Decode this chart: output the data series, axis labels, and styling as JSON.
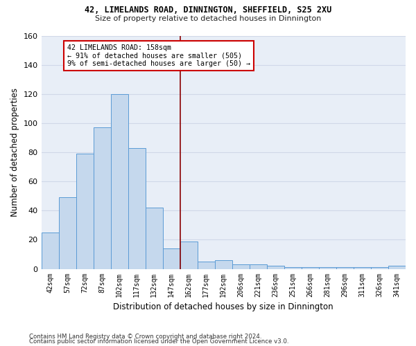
{
  "title1": "42, LIMELANDS ROAD, DINNINGTON, SHEFFIELD, S25 2XU",
  "title2": "Size of property relative to detached houses in Dinnington",
  "xlabel": "Distribution of detached houses by size in Dinnington",
  "ylabel": "Number of detached properties",
  "categories": [
    "42sqm",
    "57sqm",
    "72sqm",
    "87sqm",
    "102sqm",
    "117sqm",
    "132sqm",
    "147sqm",
    "162sqm",
    "177sqm",
    "192sqm",
    "206sqm",
    "221sqm",
    "236sqm",
    "251sqm",
    "266sqm",
    "281sqm",
    "296sqm",
    "311sqm",
    "326sqm",
    "341sqm"
  ],
  "values": [
    25,
    49,
    79,
    97,
    120,
    83,
    42,
    14,
    19,
    5,
    6,
    3,
    3,
    2,
    1,
    1,
    1,
    1,
    1,
    1,
    2
  ],
  "bar_color": "#c5d8ed",
  "bar_edge_color": "#5b9bd5",
  "highlight_line_index": 8,
  "highlight_line_color": "#8b0000",
  "annotation_text": "42 LIMELANDS ROAD: 158sqm\n← 91% of detached houses are smaller (505)\n9% of semi-detached houses are larger (50) →",
  "annotation_box_edgecolor": "#cc0000",
  "annotation_fill": "#ffffff",
  "ylim": [
    0,
    160
  ],
  "yticks": [
    0,
    20,
    40,
    60,
    80,
    100,
    120,
    140,
    160
  ],
  "background_color": "#e8eef7",
  "grid_color": "#d0d8e8",
  "footer1": "Contains HM Land Registry data © Crown copyright and database right 2024.",
  "footer2": "Contains public sector information licensed under the Open Government Licence v3.0."
}
